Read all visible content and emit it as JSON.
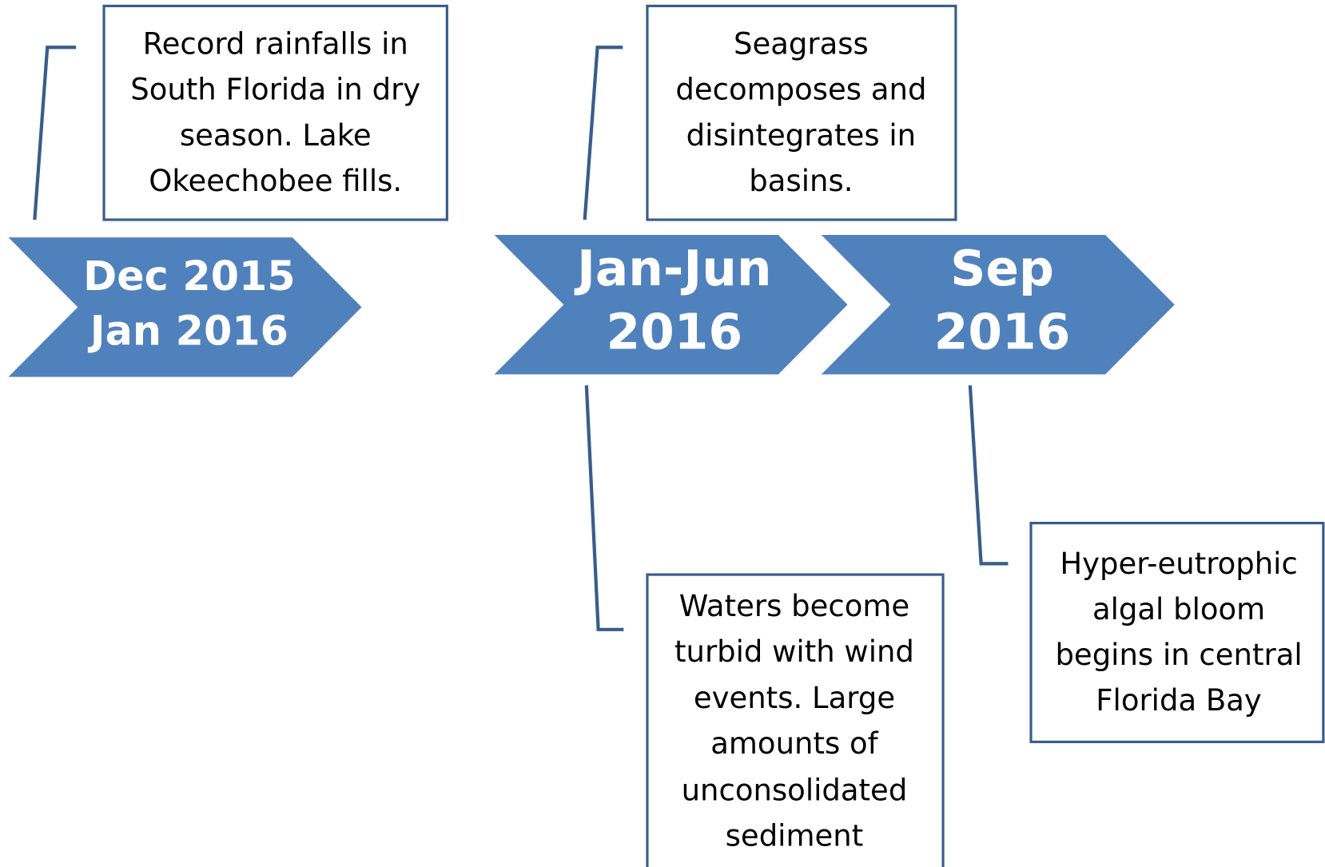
{
  "events": [
    {
      "date_lines": [
        "Dec 2015",
        "Jan 2016"
      ],
      "notes": [
        {
          "lines": [
            "Record rainfalls in",
            "South Florida in dry",
            "season. Lake",
            "Okeechobee fills."
          ]
        }
      ]
    },
    {
      "date_lines": [
        "Jan-Jun",
        "2016"
      ],
      "notes": [
        {
          "lines": [
            "Seagrass",
            "decomposes and",
            "disintegrates in",
            "basins."
          ]
        },
        {
          "lines": [
            "Waters become",
            "turbid with wind",
            "events. Large",
            "amounts of",
            "unconsolidated",
            "sediment"
          ]
        }
      ]
    },
    {
      "date_lines": [
        "Sep",
        "2016"
      ],
      "notes": [
        {
          "lines": [
            "Hyper-eutrophic",
            "algal bloom",
            "begins in central",
            "Florida Bay"
          ]
        }
      ]
    }
  ]
}
